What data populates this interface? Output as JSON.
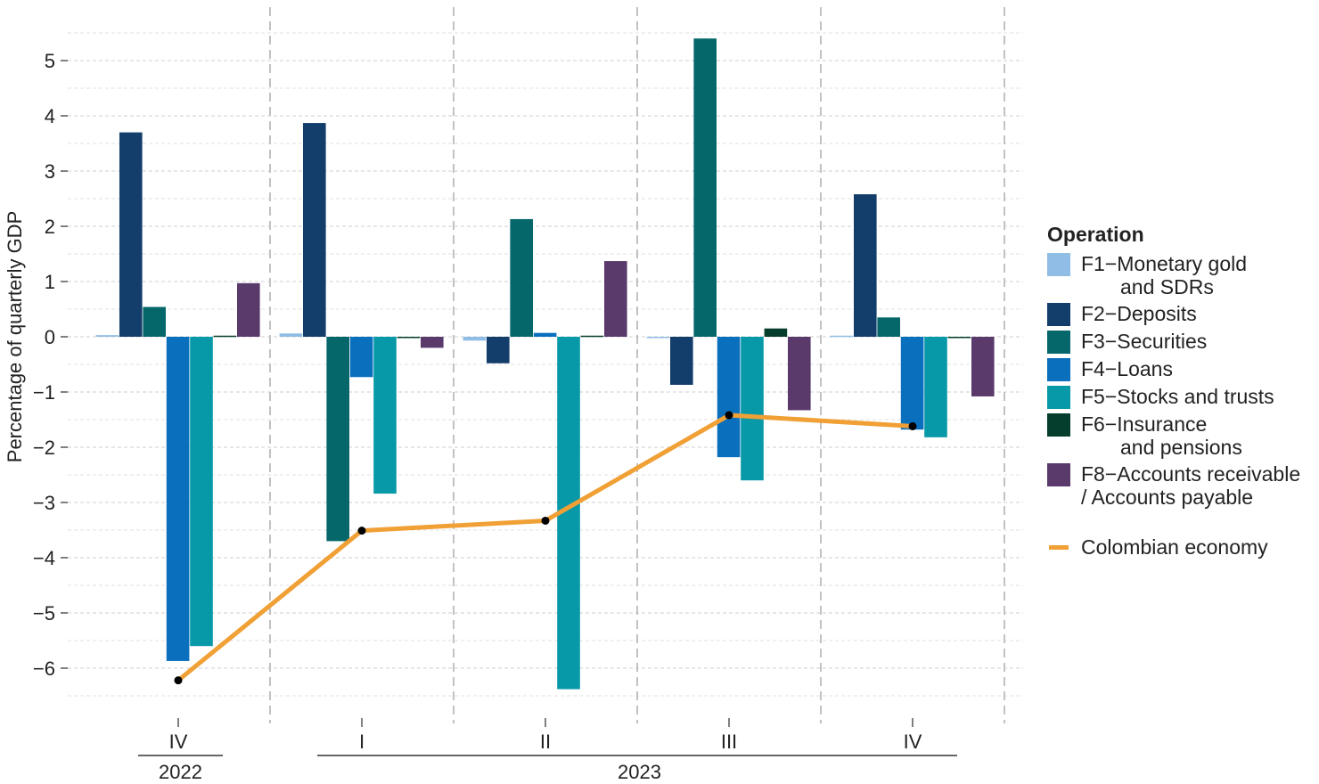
{
  "chart_data": {
    "type": "bar",
    "ylabel": "Percentage of quarterly GDP",
    "ylim": [
      -6.5,
      5.5
    ],
    "yticks": [
      -6,
      -5,
      -4,
      -3,
      -2,
      -1,
      0,
      1,
      2,
      3,
      4,
      5
    ],
    "grid": true,
    "legend_placement": "right",
    "categories": [
      "IV",
      "I",
      "II",
      "III",
      "IV"
    ],
    "year_groups": [
      {
        "label": "2022",
        "categories": [
          "IV"
        ]
      },
      {
        "label": "2023",
        "categories": [
          "I",
          "II",
          "III",
          "IV"
        ]
      }
    ],
    "legend_title": "Operation",
    "series": [
      {
        "name": "F1−Monetary gold and SDRs",
        "label_lines": [
          "F1−Monetary gold",
          "and SDRs"
        ],
        "color": "#8fbde6",
        "values": [
          0.03,
          0.06,
          -0.07,
          -0.02,
          0.02
        ]
      },
      {
        "name": "F2−Deposits",
        "label_lines": [
          "F2−Deposits"
        ],
        "color": "#133d6b",
        "values": [
          3.7,
          3.87,
          -0.48,
          -0.87,
          2.58
        ]
      },
      {
        "name": "F3−Securities",
        "label_lines": [
          "F3−Securities"
        ],
        "color": "#05676a",
        "values": [
          0.54,
          -3.7,
          2.13,
          5.4,
          0.35
        ]
      },
      {
        "name": "F4−Loans",
        "label_lines": [
          "F4−Loans"
        ],
        "color": "#0a6fbd",
        "values": [
          -5.87,
          -0.73,
          0.07,
          -2.18,
          -1.68
        ]
      },
      {
        "name": "F5−Stocks and trusts",
        "label_lines": [
          "F5−Stocks and trusts"
        ],
        "color": "#0899a8",
        "values": [
          -5.6,
          -2.84,
          -6.38,
          -2.6,
          -1.82
        ]
      },
      {
        "name": "F6−Insurance and pensions",
        "label_lines": [
          "F6−Insurance",
          "and pensions"
        ],
        "color": "#053e2c",
        "values": [
          0.02,
          -0.02,
          0.02,
          0.15,
          -0.02
        ]
      },
      {
        "name": "F8−Accounts receivable / Accounts payable",
        "label_lines": [
          "F8−Accounts receivable",
          "/ Accounts payable"
        ],
        "color": "#5a3a6b",
        "values": [
          0.97,
          -0.2,
          1.37,
          -1.33,
          -1.08
        ]
      }
    ],
    "line_series": {
      "name": "Colombian economy",
      "color": "#f0a035",
      "values": [
        -6.22,
        -3.51,
        -3.33,
        -1.42,
        -1.62
      ]
    }
  }
}
